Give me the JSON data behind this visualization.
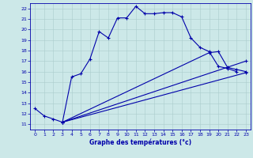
{
  "xlabel": "Graphe des températures (°c)",
  "xlim": [
    -0.5,
    23.5
  ],
  "ylim": [
    10.5,
    22.5
  ],
  "xticks": [
    0,
    1,
    2,
    3,
    4,
    5,
    6,
    7,
    8,
    9,
    10,
    11,
    12,
    13,
    14,
    15,
    16,
    17,
    18,
    19,
    20,
    21,
    22,
    23
  ],
  "yticks": [
    11,
    12,
    13,
    14,
    15,
    16,
    17,
    18,
    19,
    20,
    21,
    22
  ],
  "background_color": "#cce8e8",
  "grid_color": "#aacccc",
  "line_color": "#0000aa",
  "line1_x": [
    0,
    1,
    2,
    3,
    4,
    5,
    6,
    7,
    8,
    9,
    10,
    11,
    12,
    13,
    14,
    15,
    16,
    17,
    18,
    19,
    20,
    21,
    22
  ],
  "line1_y": [
    12.5,
    11.8,
    11.5,
    11.2,
    15.5,
    15.8,
    17.2,
    19.8,
    19.2,
    21.1,
    21.1,
    22.2,
    21.5,
    21.5,
    21.6,
    21.6,
    21.2,
    19.2,
    18.3,
    17.9,
    16.5,
    16.3,
    16.0
  ],
  "line2_x": [
    3,
    23
  ],
  "line2_y": [
    11.2,
    17.0
  ],
  "line3_x": [
    3,
    19,
    20,
    21,
    22,
    23
  ],
  "line3_y": [
    11.2,
    17.8,
    17.9,
    16.4,
    16.2,
    16.0
  ],
  "line4_x": [
    3,
    23
  ],
  "line4_y": [
    11.2,
    15.9
  ]
}
